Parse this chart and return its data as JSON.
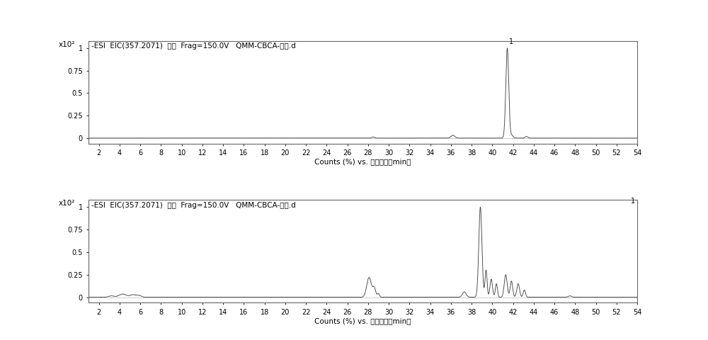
{
  "title1": "-ESI  EIC(357.2071)  扫描  Frag=150.0V   QMM-CBCA-标品.d",
  "title2": "-ESI  EIC(357.2071)  扫描  Frag=150.0V   QMM-CBCA-样品.d",
  "xlabel": "Counts (%) vs. 采集时间（min）",
  "xmin": 1,
  "xmax": 54,
  "xticks": [
    2,
    4,
    6,
    8,
    10,
    12,
    14,
    16,
    18,
    20,
    22,
    24,
    26,
    28,
    30,
    32,
    34,
    36,
    38,
    40,
    42,
    44,
    46,
    48,
    50,
    52,
    54
  ],
  "yticks": [
    0,
    0.25,
    0.5,
    0.75,
    1
  ],
  "ymin": -0.06,
  "ymax": 1.08,
  "line_color": "#444444",
  "bg_color": "#ffffff",
  "panel_bg": "#ffffff",
  "border_color": "#666666"
}
